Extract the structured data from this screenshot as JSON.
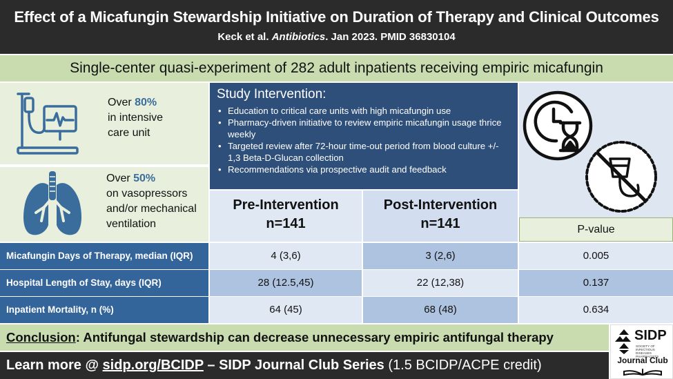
{
  "header": {
    "title": "Effect of a Micafungin Stewardship Initiative on Duration of Therapy and Clinical Outcomes",
    "citation_authors": "Keck et al. ",
    "citation_journal": "Antibiotics",
    "citation_rest": ". Jan 2023. PMID 36830104"
  },
  "design": "Single-center quasi-experiment of 282 adult inpatients receiving empiric micafungin",
  "stats": {
    "icu": {
      "prefix": "Over ",
      "value": "80%",
      "line2": "in intensive",
      "line3": "care unit",
      "icon": "iv-drip-monitor-icon"
    },
    "vaso": {
      "prefix": "Over ",
      "value": "50%",
      "line2": "on vasopressors",
      "line3": "and/or mechanical",
      "line4": "ventilation",
      "icon": "lungs-icon"
    }
  },
  "intervention": {
    "title": "Study Intervention:",
    "bullets": [
      "Education to critical care units with high micafungin use",
      "Pharmacy-driven initiative to review empiric micafungin usage thrice weekly",
      "Targeted review after 72-hour time-out period from blood culture +/- 1,3 Beta-D-Glucan collection",
      "Recommendations via prospective audit and feedback"
    ]
  },
  "icons": {
    "clock": "clock-hourglass-icon",
    "no_iv": "no-iv-icon"
  },
  "columns": {
    "pre": {
      "label": "Pre-Intervention",
      "n": "n=141"
    },
    "post": {
      "label": "Post-Intervention",
      "n": "n=141"
    },
    "pvalue": "P-value"
  },
  "rows": [
    {
      "label": "Micafungin Days of Therapy, median (IQR)",
      "pre": "4 (3,6)",
      "post": "3 (2,6)",
      "p": "0.005"
    },
    {
      "label": "Hospital Length of Stay, days (IQR)",
      "pre": "28 (12.5,45)",
      "post": "22 (12,38)",
      "p": "0.137"
    },
    {
      "label": "Inpatient Mortality, n (%)",
      "pre": "64 (45)",
      "post": "68 (48)",
      "p": "0.634"
    }
  ],
  "conclusion": {
    "label": "Conclusion",
    "text": ": Antifungal stewardship can decrease unnecessary empiric antifungal therapy"
  },
  "footer": {
    "prefix": "Learn more @ ",
    "link": "sidp.org/BCIDP",
    "middle": " – SIDP Journal Club Series ",
    "credit": "(1.5 BCIDP/ACPE credit)"
  },
  "logo": {
    "name": "SIDP",
    "society": "SOCIETY OF INFECTIOUS DISEASES PHARMACISTS",
    "series": "Journal Club"
  },
  "colors": {
    "header_bg": "#2b2b2b",
    "green_band": "#c9dcb0",
    "navy": "#2e4f79",
    "row_label_blue": "#34659a"
  }
}
